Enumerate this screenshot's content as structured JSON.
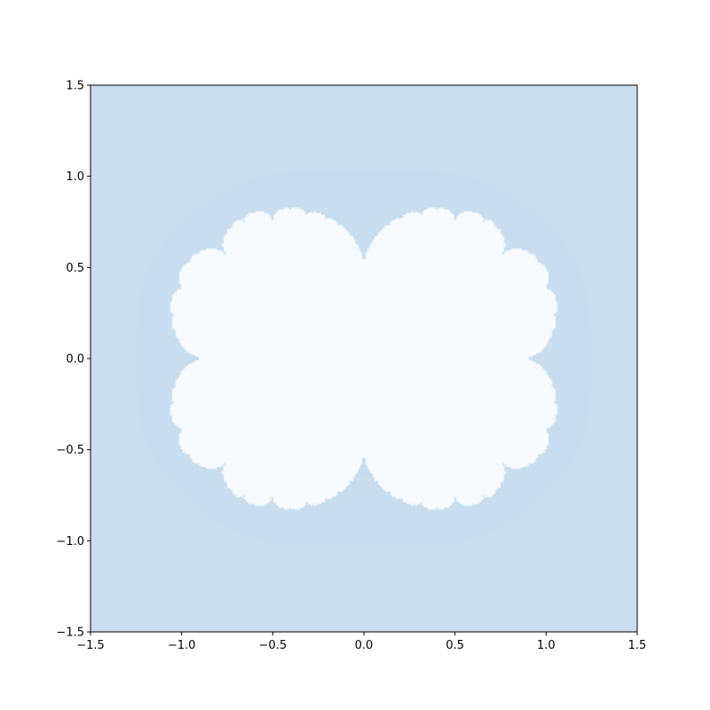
{
  "chart_data": {
    "type": "heatmap",
    "title": "",
    "xlabel": "",
    "ylabel": "",
    "xlim": [
      -1.5,
      1.5
    ],
    "ylim": [
      -1.5,
      1.5
    ],
    "grid": false,
    "colormap": "Blues",
    "description_values": {
      "fractal_set_color": "#f7fbff",
      "outer_color": "#cddff0",
      "near_boundary_color": "#9ecae1"
    },
    "x_ticks": [
      {
        "value": -1.5,
        "label": "−1.5"
      },
      {
        "value": -1.0,
        "label": "−1.0"
      },
      {
        "value": -0.5,
        "label": "−0.5"
      },
      {
        "value": 0.0,
        "label": "0.0"
      },
      {
        "value": 0.5,
        "label": "0.5"
      },
      {
        "value": 1.0,
        "label": "1.0"
      },
      {
        "value": 1.5,
        "label": "1.5"
      }
    ],
    "y_ticks": [
      {
        "value": 1.5,
        "label": "1.5"
      },
      {
        "value": 1.0,
        "label": "1.0"
      },
      {
        "value": 0.5,
        "label": "0.5"
      },
      {
        "value": 0.0,
        "label": "0.0"
      },
      {
        "value": -0.5,
        "label": "−0.5"
      },
      {
        "value": -1.0,
        "label": "−1.0"
      },
      {
        "value": -1.5,
        "label": "−1.5"
      }
    ]
  }
}
